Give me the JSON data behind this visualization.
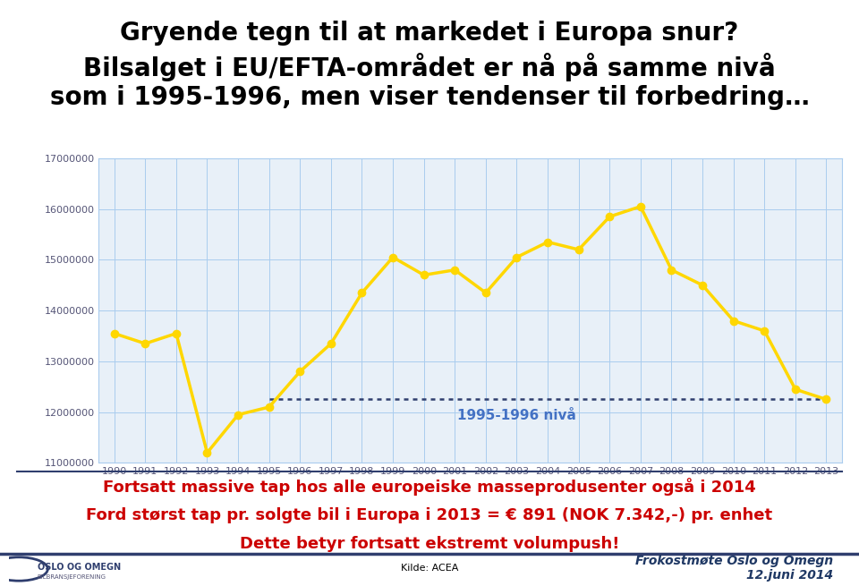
{
  "title_line1": "Gryende tegn til at markedet i Europa snur?",
  "title_line2": "Bilsalget i EU/EFTA-området er nå på samme nivå",
  "title_line3": "som i 1995-1996, men viser tendenser til forbedring…",
  "years": [
    1990,
    1991,
    1992,
    1993,
    1994,
    1995,
    1996,
    1997,
    1998,
    1999,
    2000,
    2001,
    2002,
    2003,
    2004,
    2005,
    2006,
    2007,
    2008,
    2009,
    2010,
    2011,
    2012,
    2013
  ],
  "values": [
    13550000,
    13350000,
    13550000,
    11200000,
    11950000,
    12100000,
    12800000,
    13350000,
    14350000,
    15050000,
    14700000,
    14800000,
    14350000,
    15050000,
    15350000,
    15200000,
    15850000,
    16050000,
    14800000,
    14500000,
    13800000,
    13600000,
    12450000,
    12250000
  ],
  "line_color": "#FFD700",
  "line_width": 2.5,
  "marker": "o",
  "marker_size": 6,
  "marker_color": "#FFD700",
  "reference_level": 12250000,
  "reference_start_year": 1995,
  "reference_end_year": 2013,
  "reference_color": "#2F3E6E",
  "reference_label": "1995-1996 nivå",
  "reference_label_color": "#4472C4",
  "ylim": [
    11000000,
    17000000
  ],
  "yticks": [
    11000000,
    12000000,
    13000000,
    14000000,
    15000000,
    16000000,
    17000000
  ],
  "xlim_left": 1989.5,
  "xlim_right": 2013.5,
  "grid_color": "#AACCEE",
  "background_color": "#FFFFFF",
  "plot_bg_color": "#E8F0F8",
  "footer_text1": "Fortsatt massive tap hos alle europeiske masseprodusenter også i 2014",
  "footer_text2": "Ford størst tap pr. solgte bil i Europa i 2013 = € 891 (NOK 7.342,-) pr. enhet",
  "footer_text3": "Dette betyr fortsatt ekstremt volumpush!",
  "footer_color": "#CC0000",
  "footer_sep_color": "#2F3E6E",
  "source_text": "Kilde: ACEA",
  "branding_text": "Frokostmøte Oslo og Omegn\n12.juni 2014",
  "branding_color": "#1F3864",
  "tick_label_color": "#555577",
  "title_fontsize": 20,
  "footer_fontsize": 13
}
